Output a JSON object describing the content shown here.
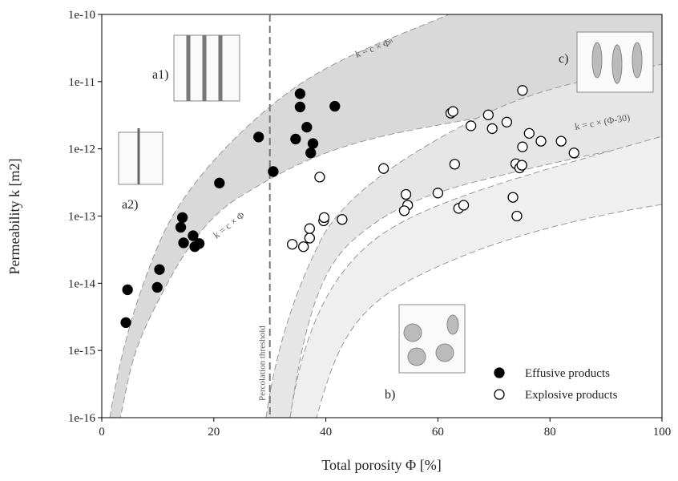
{
  "chart_data": {
    "type": "scatter",
    "xlabel": "Total porosity Φ [%]",
    "ylabel": "Permeability k [m2]",
    "xlim": [
      0,
      100
    ],
    "xticks": [
      0,
      20,
      40,
      60,
      80,
      100
    ],
    "ylim": [
      1e-16,
      1e-10
    ],
    "yticks": [
      1e-16,
      1e-15,
      1e-14,
      1e-13,
      1e-12,
      1e-11,
      1e-10
    ],
    "ylog": true,
    "legend": "lower right",
    "threshold": {
      "x": 30,
      "label": "Percolation threshold"
    },
    "annotations": [
      "a1)",
      "a2)",
      "b)",
      "c)",
      "k = c × Φ",
      "k = c × Φⁿ",
      "k = c × (Φ-30)"
    ],
    "series": [
      {
        "name": "Effusive products",
        "color": "#000000",
        "marker": "filled",
        "x": [
          4.6,
          4.3,
          9.9,
          10.3,
          14.4,
          14.1,
          14.6,
          16.3,
          16.6,
          17.4,
          21,
          28,
          30.6,
          35.4,
          35.4,
          34.6,
          36.6,
          37.7,
          37.3,
          41.6
        ],
        "values": [
          8e-15,
          2.6e-15,
          8.7e-15,
          1.6e-14,
          9.5e-14,
          6.8e-14,
          4e-14,
          5.1e-14,
          3.5e-14,
          3.9e-14,
          3.1e-13,
          1.5e-12,
          4.6e-13,
          6.6e-12,
          4.2e-12,
          1.4e-12,
          2.1e-12,
          1.2e-12,
          8.7e-13,
          4.3e-12
        ]
      },
      {
        "name": "Explosive products",
        "color": "#000000",
        "marker": "open",
        "x": [
          75.1,
          62.3,
          62.7,
          69,
          65.9,
          69.7,
          72.3,
          76.3,
          75.1,
          78.4,
          82,
          84.3,
          73.9,
          74.6,
          75,
          63,
          50.3,
          38.9,
          54.3,
          54.6,
          54,
          60,
          73.4,
          63.7,
          64.6,
          74.1,
          39.6,
          39.7,
          42.9,
          37.1,
          37.1,
          34,
          36
        ],
        "values": [
          7.4e-12,
          3.4e-12,
          3.6e-12,
          3.2e-12,
          2.2e-12,
          2e-12,
          2.5e-12,
          1.7e-12,
          1.07e-12,
          1.3e-12,
          1.3e-12,
          8.7e-13,
          6e-13,
          5.2e-13,
          5.7e-13,
          5.9e-13,
          5.1e-13,
          3.8e-13,
          2.1e-13,
          1.45e-13,
          1.2e-13,
          2.2e-13,
          1.9e-13,
          1.3e-13,
          1.45e-13,
          1e-13,
          8.5e-14,
          9.5e-14,
          8.9e-14,
          6.5e-14,
          4.7e-14,
          3.8e-14,
          3.5e-14
        ]
      }
    ]
  }
}
